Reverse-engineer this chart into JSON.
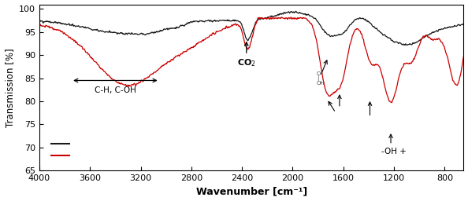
{
  "xlabel": "Wavenumber [cm⁻¹]",
  "ylabel": "Transmission [%]",
  "xlim": [
    4000,
    650
  ],
  "ylim": [
    65,
    101
  ],
  "yticks": [
    65,
    70,
    75,
    80,
    85,
    90,
    95,
    100
  ],
  "xticks": [
    4000,
    3600,
    3200,
    2800,
    2400,
    2000,
    1600,
    1200,
    800
  ],
  "black_color": "#1a1a1a",
  "red_color": "#cc0000",
  "bg_color": "#ffffff"
}
